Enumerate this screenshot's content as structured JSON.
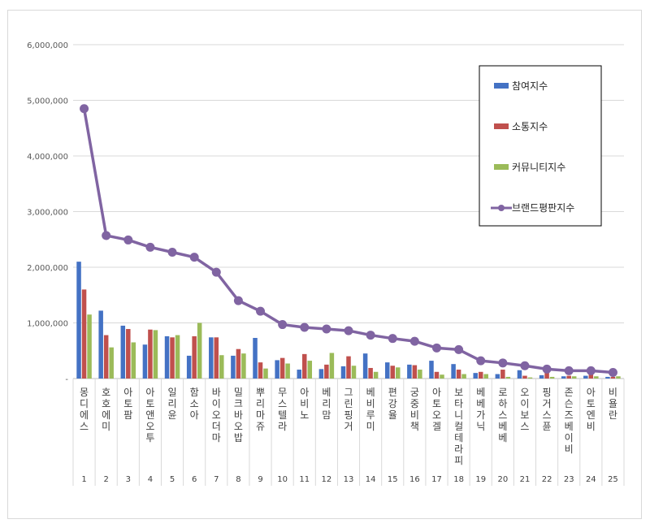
{
  "chart_data": {
    "type": "bar",
    "title": "",
    "xlabel": "",
    "ylabel": "",
    "ylim": [
      0,
      6000000
    ],
    "yticks": [
      {
        "value": 0,
        "label": "-"
      },
      {
        "value": 1000000,
        "label": "1,000,000"
      },
      {
        "value": 2000000,
        "label": "2,000,000"
      },
      {
        "value": 3000000,
        "label": "3,000,000"
      },
      {
        "value": 4000000,
        "label": "4,000,000"
      },
      {
        "value": 5000000,
        "label": "5,000,000"
      },
      {
        "value": 6000000,
        "label": "6,000,000"
      }
    ],
    "grid": true,
    "legend_position": "right",
    "categories": [
      "몽디에스",
      "호호에미",
      "아토팜",
      "아토앤오투",
      "일리윤",
      "함소아",
      "바이오더마",
      "밀크바오밥",
      "뿌리마쥬",
      "무스텔라",
      "아비노",
      "베리맘",
      "그린핑거",
      "베비루미",
      "편강율",
      "궁중비책",
      "아토오겔",
      "보타니컬테라피",
      "베베가닉",
      "로하스베베",
      "오이보스",
      "핑거스퓬",
      "존슨즈베이비",
      "아토엔비",
      "비욜란"
    ],
    "ranks": [
      "1",
      "2",
      "3",
      "4",
      "5",
      "6",
      "7",
      "8",
      "9",
      "10",
      "11",
      "12",
      "13",
      "14",
      "15",
      "16",
      "17",
      "18",
      "19",
      "20",
      "21",
      "22",
      "23",
      "24",
      "25"
    ],
    "series": [
      {
        "name": "참여지수",
        "kind": "bar",
        "color": "#4472c4",
        "values": [
          2100000,
          1220000,
          950000,
          610000,
          760000,
          410000,
          740000,
          410000,
          730000,
          330000,
          160000,
          170000,
          220000,
          450000,
          290000,
          250000,
          320000,
          260000,
          100000,
          80000,
          150000,
          60000,
          40000,
          50000,
          30000
        ]
      },
      {
        "name": "소통지수",
        "kind": "bar",
        "color": "#c0504d",
        "values": [
          1600000,
          780000,
          890000,
          880000,
          740000,
          760000,
          740000,
          530000,
          290000,
          370000,
          440000,
          250000,
          400000,
          190000,
          230000,
          240000,
          120000,
          160000,
          120000,
          160000,
          50000,
          120000,
          50000,
          80000,
          30000
        ]
      },
      {
        "name": "커뮤니티지수",
        "kind": "bar",
        "color": "#9bbb59",
        "values": [
          1150000,
          560000,
          650000,
          870000,
          780000,
          1000000,
          420000,
          450000,
          180000,
          270000,
          320000,
          460000,
          230000,
          120000,
          200000,
          160000,
          70000,
          80000,
          80000,
          30000,
          20000,
          30000,
          40000,
          40000,
          40000
        ]
      },
      {
        "name": "브랜드평판지수",
        "kind": "line",
        "color": "#8064a2",
        "values": [
          4850000,
          2570000,
          2490000,
          2360000,
          2270000,
          2180000,
          1910000,
          1400000,
          1210000,
          970000,
          920000,
          890000,
          860000,
          780000,
          720000,
          670000,
          550000,
          520000,
          320000,
          280000,
          230000,
          170000,
          140000,
          140000,
          110000
        ]
      }
    ]
  }
}
